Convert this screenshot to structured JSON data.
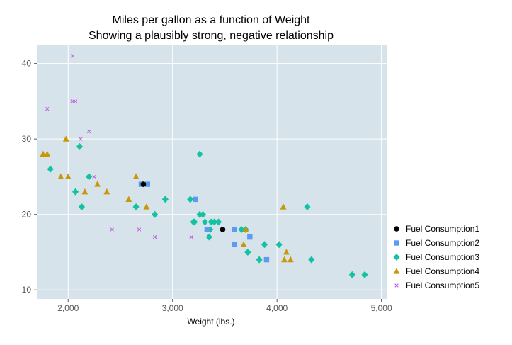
{
  "chart_data": {
    "type": "scatter",
    "title": "Miles per gallon as a function of Weight",
    "subtitle": "Showing a plausibly strong, negative relationship",
    "xlabel": "Weight (lbs.)",
    "ylabel": "",
    "xlim": [
      1700,
      5050
    ],
    "ylim": [
      8.8,
      42.5
    ],
    "xticks": [
      2000,
      3000,
      4000,
      5000
    ],
    "xtick_labels": [
      "2,000",
      "3,000",
      "4,000",
      "5,000"
    ],
    "yticks": [
      10,
      20,
      30,
      40
    ],
    "ytick_labels": [
      "10",
      "20",
      "30",
      "40"
    ],
    "grid": true,
    "legend_position": "right",
    "background_color": "#d6e3ea",
    "series": [
      {
        "name": "Fuel Consumption1",
        "marker": "circle",
        "color": "#000000",
        "points": [
          [
            3480,
            18
          ],
          [
            2720,
            24
          ]
        ]
      },
      {
        "name": "Fuel Consumption2",
        "marker": "square",
        "color": "#5b9cf2",
        "points": [
          [
            2700,
            24
          ],
          [
            2760,
            24
          ],
          [
            3220,
            22
          ],
          [
            3590,
            18
          ],
          [
            3590,
            16
          ],
          [
            3330,
            18
          ],
          [
            3740,
            17
          ],
          [
            3900,
            14
          ]
        ]
      },
      {
        "name": "Fuel Consumption3",
        "marker": "diamond",
        "color": "#14c2a3",
        "points": [
          [
            1830,
            26
          ],
          [
            2070,
            23
          ],
          [
            2110,
            29
          ],
          [
            2130,
            21
          ],
          [
            2200,
            25
          ],
          [
            2650,
            21
          ],
          [
            2830,
            20
          ],
          [
            2930,
            22
          ],
          [
            3170,
            22
          ],
          [
            3200,
            19
          ],
          [
            3210,
            19
          ],
          [
            3260,
            28
          ],
          [
            3260,
            20
          ],
          [
            3290,
            20
          ],
          [
            3310,
            19
          ],
          [
            3350,
            17
          ],
          [
            3360,
            18
          ],
          [
            3370,
            19
          ],
          [
            3400,
            19
          ],
          [
            3440,
            19
          ],
          [
            3660,
            18
          ],
          [
            3700,
            18
          ],
          [
            3720,
            15
          ],
          [
            3830,
            14
          ],
          [
            3880,
            16
          ],
          [
            4020,
            16
          ],
          [
            4290,
            21
          ],
          [
            4330,
            14
          ],
          [
            4720,
            12
          ],
          [
            4840,
            12
          ]
        ]
      },
      {
        "name": "Fuel Consumption4",
        "marker": "triangle",
        "color": "#c9980a",
        "points": [
          [
            1760,
            28
          ],
          [
            1800,
            28
          ],
          [
            1930,
            25
          ],
          [
            1980,
            30
          ],
          [
            2000,
            25
          ],
          [
            2160,
            23
          ],
          [
            2280,
            24
          ],
          [
            2370,
            23
          ],
          [
            2580,
            22
          ],
          [
            2650,
            25
          ],
          [
            2750,
            21
          ],
          [
            3680,
            16
          ],
          [
            3700,
            18
          ],
          [
            4060,
            21
          ],
          [
            4070,
            14
          ],
          [
            4090,
            15
          ],
          [
            4130,
            14
          ]
        ]
      },
      {
        "name": "Fuel Consumption5",
        "marker": "x",
        "color": "#c45be6",
        "points": [
          [
            1800,
            34
          ],
          [
            2040,
            41
          ],
          [
            2040,
            35
          ],
          [
            2070,
            35
          ],
          [
            2120,
            30
          ],
          [
            2200,
            31
          ],
          [
            2250,
            25
          ],
          [
            2420,
            18
          ],
          [
            2680,
            18
          ],
          [
            2830,
            17
          ],
          [
            3180,
            17
          ]
        ]
      }
    ]
  }
}
